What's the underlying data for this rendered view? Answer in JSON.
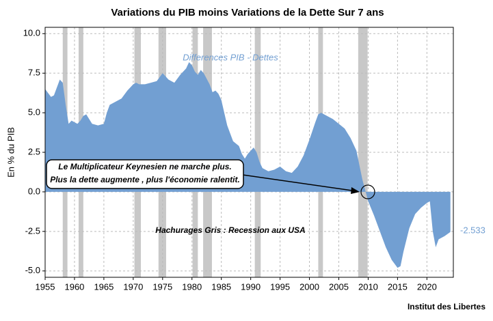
{
  "chart_data": {
    "type": "area",
    "title": "Variations du PIB moins Variations de la Dette Sur 7 ans",
    "y_label": "En % du PIB",
    "source": "Institut des Libertes",
    "annotation_lines": [
      "Le Multiplicateur Keynesien ne marche plus.",
      "Plus la dette augmente , plus l'économie ralentit."
    ],
    "recession_note": "Hachurages Gris : Recession aux USA",
    "xlim": [
      1955,
      2024.5
    ],
    "ylim": [
      -5.4,
      10.4
    ],
    "xticks": [
      1955,
      1960,
      1965,
      1970,
      1975,
      1980,
      1985,
      1990,
      1995,
      2000,
      2005,
      2010,
      2015,
      2020
    ],
    "yticks": [
      {
        "value": 10,
        "label": "10.0"
      },
      7.5,
      {
        "value": 5,
        "label": "5.0"
      },
      2.5,
      {
        "value": 0,
        "label": "0.0"
      },
      -2.5,
      {
        "value": -5,
        "label": "-5.0"
      }
    ],
    "grid": true,
    "recession_color": "#c8c8c8",
    "recessions": [
      [
        1958.0,
        1958.8
      ],
      [
        1960.7,
        1961.5
      ],
      [
        1970.2,
        1971.3
      ],
      [
        1974.3,
        1975.6
      ],
      [
        1980.1,
        1981.0
      ],
      [
        1981.9,
        1983.4
      ],
      [
        1990.7,
        1991.7
      ],
      [
        2001.5,
        2002.3
      ],
      [
        2008.3,
        2009.9
      ]
    ],
    "x": [
      1955,
      1956,
      1956.5,
      1957,
      1957.5,
      1958,
      1958.5,
      1959,
      1959.5,
      1960,
      1960.5,
      1961,
      1961.5,
      1962,
      1962.5,
      1963,
      1964,
      1965,
      1965.5,
      1966,
      1967,
      1968,
      1969,
      1970,
      1970.5,
      1971,
      1972,
      1973,
      1974,
      1975,
      1975.5,
      1976,
      1977,
      1978,
      1979,
      1979.5,
      1980,
      1980.5,
      1981,
      1981.5,
      1982,
      1983,
      1983.5,
      1984,
      1984.5,
      1985,
      1985.5,
      1986,
      1987,
      1988,
      1988.5,
      1989,
      1989.5,
      1990,
      1990.5,
      1991,
      1991.5,
      1992,
      1993,
      1994,
      1995,
      1996,
      1997,
      1998,
      1999,
      2000,
      2001,
      2001.5,
      2002,
      2003,
      2004,
      2005,
      2006,
      2007,
      2008,
      2009,
      2010,
      2011,
      2012,
      2013,
      2014,
      2015,
      2015.5,
      2016,
      2017,
      2018,
      2019,
      2020,
      2020.5,
      2021,
      2021.5,
      2022,
      2023,
      2024
    ],
    "series": [
      {
        "name": "Differences PIB - Dettes",
        "color": "#729fd2",
        "values": [
          6.5,
          6.0,
          6.1,
          6.6,
          7.1,
          6.9,
          5.5,
          4.3,
          4.5,
          4.4,
          4.3,
          4.5,
          4.8,
          4.9,
          4.6,
          4.3,
          4.2,
          4.3,
          5.0,
          5.5,
          5.7,
          5.9,
          6.4,
          6.8,
          6.9,
          6.8,
          6.8,
          6.9,
          7.0,
          7.5,
          7.3,
          7.1,
          6.9,
          7.4,
          7.8,
          8.2,
          8.0,
          7.6,
          7.4,
          7.7,
          7.5,
          6.8,
          6.3,
          6.4,
          6.2,
          5.8,
          5.0,
          4.2,
          3.2,
          2.9,
          2.4,
          2.1,
          2.4,
          2.6,
          2.8,
          2.5,
          1.9,
          1.5,
          1.3,
          1.4,
          1.6,
          1.3,
          1.2,
          1.6,
          2.3,
          3.3,
          4.4,
          4.9,
          5.0,
          4.8,
          4.6,
          4.3,
          4.0,
          3.4,
          2.6,
          0.8,
          -0.6,
          -1.5,
          -2.5,
          -3.5,
          -4.3,
          -4.8,
          -4.7,
          -3.8,
          -2.3,
          -1.4,
          -1.0,
          -0.7,
          -0.6,
          -2.5,
          -3.5,
          -3.0,
          -2.8,
          -2.533
        ]
      }
    ]
  }
}
